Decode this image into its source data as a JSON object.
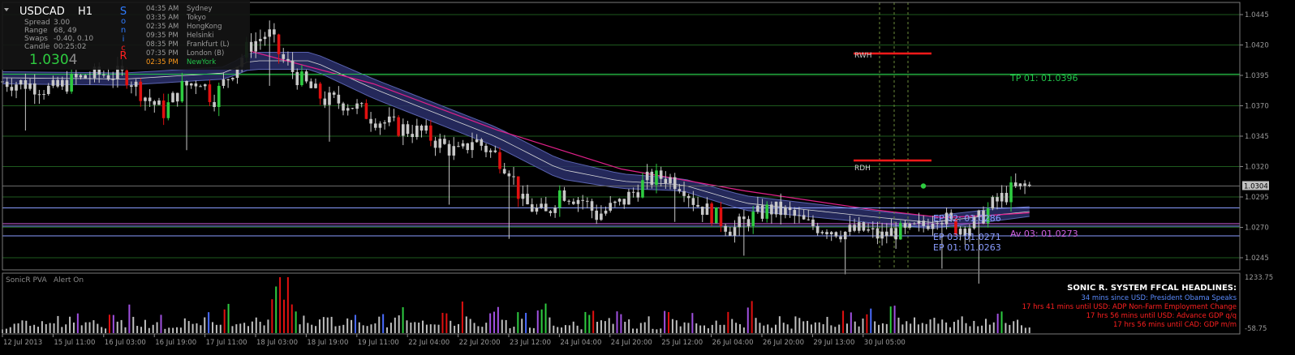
{
  "symbol": "USDCAD",
  "timeframe": "H1",
  "info": {
    "spread_label": "Spread",
    "spread_value": "3.00",
    "range_label": "Range",
    "range_value": "68, 49",
    "swaps_label": "Swaps",
    "swaps_value": "-0.40, 0.10",
    "candle_label": "Candle",
    "candle_value": "00:25:02",
    "price_main": "1.030",
    "price_last": "4"
  },
  "sonic_letters": [
    "S",
    "o",
    "n",
    "i",
    "c",
    "R"
  ],
  "sessions": [
    {
      "time": "04:35 AM",
      "city": "Sydney"
    },
    {
      "time": "03:35 AM",
      "city": "Tokyo"
    },
    {
      "time": "02:35 AM",
      "city": "HongKong"
    },
    {
      "time": "09:35 PM",
      "city": "Helsinki"
    },
    {
      "time": "08:35 PM",
      "city": "Frankfurt  (L)"
    },
    {
      "time": "07:35 PM",
      "city": "London  (B)"
    },
    {
      "time": "02:35 PM",
      "city": "NewYork"
    }
  ],
  "levels": {
    "tp01": "TP 01:  01.0396",
    "ep02": "EP 02:  01.0286",
    "ep03": "EP 03:  01.0271",
    "ep01": "EP 01:  01.0263",
    "av03": "Av 03:  01.0273",
    "rwh": "RWH",
    "rdh": "RDH"
  },
  "current_price_tag": "1.0304",
  "indicator": {
    "name": "SonicR PVA",
    "alert": "Alert On",
    "scale_top": "1233.75",
    "scale_bottom": "-58.75"
  },
  "headlines": {
    "title": "SONIC R. SYSTEM  FFCAL HEADLINES:",
    "items": [
      "34 mins since USD: President Obama Speaks",
      "17 hrs 41 mins until USD: ADP Non-Farm Employment Change",
      "17 hrs 56 mins until USD: Advance GDP q/q",
      "17 hrs 56 mins until CAD: GDP m/m"
    ]
  },
  "colors": {
    "background": "#000000",
    "bull_candle": "#2ecc40",
    "bear_candle": "#e01010",
    "neutral_candle": "#c8c8c8",
    "dragon_band": "#2a2f6a",
    "ema_line": "#e0208a",
    "tp_color": "#22c44a",
    "ep_color": "#8a9cff",
    "av_color": "#d060e0",
    "resistance_color": "#ff1a1a",
    "volume_blue": "#4a6cff",
    "volume_purple": "#a050e0"
  },
  "chart_data": {
    "type": "candlestick",
    "symbol": "USDCAD",
    "timeframe": "H1",
    "price_ticks": [
      "1.0445",
      "1.0420",
      "1.0395",
      "1.0370",
      "1.0345",
      "1.0320",
      "1.0295",
      "1.0270",
      "1.0245"
    ],
    "ylim": [
      1.0235,
      1.0455
    ],
    "time_ticks": [
      "12 Jul 2013",
      "15 Jul 11:00",
      "16 Jul 03:00",
      "16 Jul 19:00",
      "17 Jul 11:00",
      "18 Jul 03:00",
      "18 Jul 19:00",
      "19 Jul 11:00",
      "22 Jul 04:00",
      "22 Jul 20:00",
      "23 Jul 12:00",
      "24 Jul 04:00",
      "24 Jul 20:00",
      "25 Jul 12:00",
      "26 Jul 04:00",
      "26 Jul 20:00",
      "29 Jul 13:00",
      "30 Jul 05:00"
    ],
    "close_path": [
      [
        0,
        1.039
      ],
      [
        0.02,
        1.0388
      ],
      [
        0.04,
        1.0383
      ],
      [
        0.06,
        1.0392
      ],
      [
        0.08,
        1.0396
      ],
      [
        0.1,
        1.0395
      ],
      [
        0.115,
        1.0378
      ],
      [
        0.13,
        1.0365
      ],
      [
        0.145,
        1.0385
      ],
      [
        0.16,
        1.0392
      ],
      [
        0.17,
        1.0375
      ],
      [
        0.185,
        1.0398
      ],
      [
        0.2,
        1.042
      ],
      [
        0.215,
        1.043
      ],
      [
        0.225,
        1.041
      ],
      [
        0.24,
        1.0392
      ],
      [
        0.26,
        1.0375
      ],
      [
        0.28,
        1.0372
      ],
      [
        0.3,
        1.036
      ],
      [
        0.32,
        1.0352
      ],
      [
        0.34,
        1.0348
      ],
      [
        0.355,
        1.0338
      ],
      [
        0.37,
        1.033
      ],
      [
        0.38,
        1.0343
      ],
      [
        0.4,
        1.0328
      ],
      [
        0.41,
        1.0318
      ],
      [
        0.42,
        1.029
      ],
      [
        0.44,
        1.028
      ],
      [
        0.45,
        1.03
      ],
      [
        0.47,
        1.0292
      ],
      [
        0.48,
        1.028
      ],
      [
        0.5,
        1.029
      ],
      [
        0.52,
        1.0308
      ],
      [
        0.535,
        1.0312
      ],
      [
        0.55,
        1.0305
      ],
      [
        0.56,
        1.029
      ],
      [
        0.575,
        1.028
      ],
      [
        0.59,
        1.0268
      ],
      [
        0.605,
        1.0278
      ],
      [
        0.62,
        1.0285
      ],
      [
        0.635,
        1.0282
      ],
      [
        0.65,
        1.0272
      ],
      [
        0.665,
        1.027
      ],
      [
        0.68,
        1.0266
      ],
      [
        0.695,
        1.0268
      ],
      [
        0.71,
        1.0262
      ],
      [
        0.72,
        1.0267
      ],
      [
        0.73,
        1.0265
      ],
      [
        0.745,
        1.0272
      ],
      [
        0.755,
        1.0282
      ],
      [
        0.77,
        1.027
      ],
      [
        0.785,
        1.0272
      ],
      [
        0.8,
        1.0288
      ],
      [
        0.815,
        1.03
      ],
      [
        0.83,
        1.0304
      ]
    ],
    "spikes": [
      {
        "t": 0.02,
        "len": 0.0055
      },
      {
        "t": 0.15,
        "len": 0.0085
      },
      {
        "t": 0.215,
        "len": 0.006
      },
      {
        "t": 0.265,
        "len": 0.0045
      },
      {
        "t": 0.36,
        "len": 0.0055
      },
      {
        "t": 0.41,
        "len": 0.008
      },
      {
        "t": 0.545,
        "len": 0.004
      },
      {
        "t": 0.6,
        "len": 0.005
      },
      {
        "t": 0.68,
        "len": 0.004
      },
      {
        "t": 0.76,
        "len": 0.0055
      },
      {
        "t": 0.79,
        "len": 0.008
      }
    ],
    "ema_path": [
      [
        0.2,
        1.0415
      ],
      [
        0.3,
        1.0388
      ],
      [
        0.4,
        1.035
      ],
      [
        0.5,
        1.0318
      ],
      [
        0.6,
        1.03
      ],
      [
        0.7,
        1.0285
      ],
      [
        0.76,
        1.0278
      ],
      [
        0.8,
        1.028
      ],
      [
        0.83,
        1.0282
      ]
    ],
    "band_path": [
      [
        0,
        1.0388,
        1.0398
      ],
      [
        0.1,
        1.0387,
        1.0397
      ],
      [
        0.18,
        1.0392,
        1.0402
      ],
      [
        0.2,
        1.04,
        1.0414
      ],
      [
        0.25,
        1.04,
        1.0414
      ],
      [
        0.3,
        1.0376,
        1.0392
      ],
      [
        0.35,
        1.0356,
        1.0372
      ],
      [
        0.4,
        1.0336,
        1.0352
      ],
      [
        0.45,
        1.031,
        1.0326
      ],
      [
        0.5,
        1.0302,
        1.0314
      ],
      [
        0.55,
        1.03,
        1.031
      ],
      [
        0.6,
        1.0284,
        1.0296
      ],
      [
        0.7,
        1.0274,
        1.0284
      ],
      [
        0.75,
        1.0269,
        1.0279
      ],
      [
        0.8,
        1.0275,
        1.0285
      ],
      [
        0.83,
        1.0279,
        1.0287
      ]
    ],
    "horizontal_levels": [
      {
        "label": "TP 01",
        "value": 1.0396
      },
      {
        "label": "EP 02",
        "value": 1.0286
      },
      {
        "label": "Av 03",
        "value": 1.0273
      },
      {
        "label": "EP 03",
        "value": 1.0271
      },
      {
        "label": "EP 01",
        "value": 1.0263
      }
    ],
    "resistance_levels": [
      {
        "label": "RWH",
        "value": 1.0413
      },
      {
        "label": "RDH",
        "value": 1.0325
      }
    ],
    "current_price": 1.0304,
    "volume_series": [
      0.1,
      0.15,
      0.2,
      0.12,
      0.18,
      0.25,
      0.14,
      0.3,
      0.16,
      0.22,
      0.12,
      0.35,
      0.18,
      0.42,
      0.2,
      0.16,
      0.25,
      0.12,
      0.1,
      0.28,
      0.15,
      0.38,
      0.2,
      0.5,
      0.22,
      0.14,
      0.3,
      0.18,
      0.65,
      1.0,
      0.4,
      0.25,
      0.18,
      0.3,
      0.22,
      0.15,
      0.35,
      0.2,
      0.12,
      0.28,
      0.18,
      0.42,
      0.2,
      0.15,
      0.25,
      0.12,
      0.3,
      0.18,
      0.45,
      0.22,
      0.15,
      0.38,
      0.2,
      0.12,
      0.28,
      0.16,
      0.4,
      0.22,
      0.15,
      0.25,
      0.12,
      0.3,
      0.18,
      0.22,
      0.38,
      0.2,
      0.14,
      0.26,
      0.12,
      0.34,
      0.2,
      0.16,
      0.28,
      0.12,
      0.22,
      0.15,
      0.3,
      0.18,
      0.45,
      0.2,
      0.15,
      0.25,
      0.12,
      0.38,
      0.2,
      0.16,
      0.22,
      0.12,
      0.3,
      0.18,
      0.35,
      0.2,
      0.15,
      0.42,
      0.18,
      0.22,
      0.14,
      0.28,
      0.2,
      0.16,
      0.32,
      0.18,
      0.12,
      0.25,
      0.5,
      0.22,
      0.18,
      0.15
    ]
  }
}
